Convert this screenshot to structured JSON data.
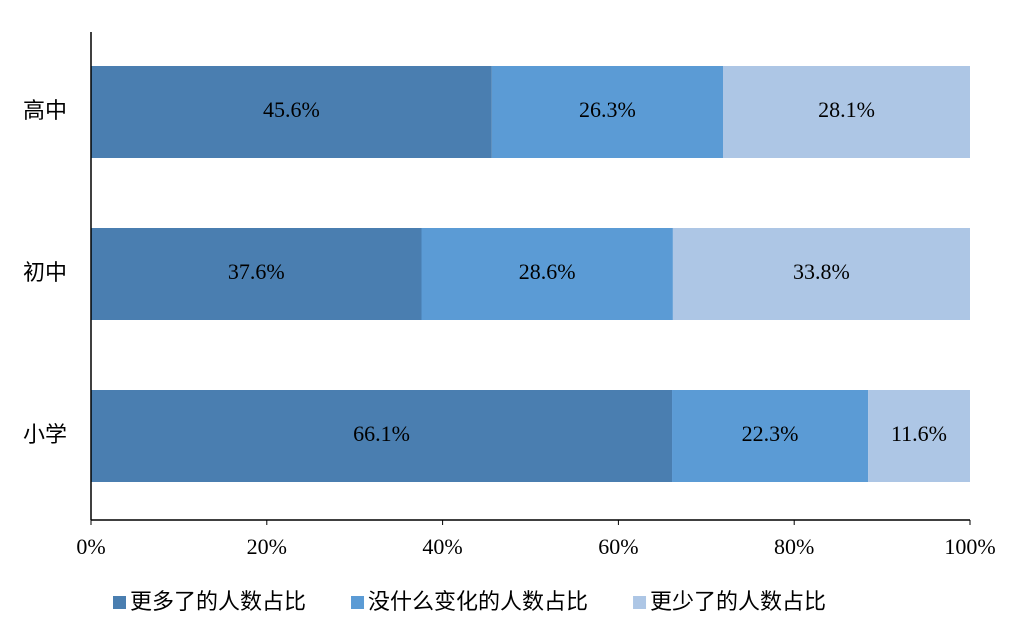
{
  "chart_data": {
    "type": "stacked-bar-horizontal",
    "categories": [
      "高中",
      "初中",
      "小学"
    ],
    "series": [
      {
        "name": "更多了的人数占比",
        "color": "#4a7eb0",
        "values": [
          45.6,
          37.6,
          66.1
        ],
        "value_labels": [
          "45.6%",
          "37.6%",
          "66.1%"
        ]
      },
      {
        "name": "没什么变化的人数占比",
        "color": "#5b9bd5",
        "values": [
          26.3,
          28.6,
          22.3
        ],
        "value_labels": [
          "26.3%",
          "28.6%",
          "22.3%"
        ]
      },
      {
        "name": "更少了的人数占比",
        "color": "#adc6e5",
        "values": [
          28.1,
          33.8,
          11.6
        ],
        "value_labels": [
          "28.1%",
          "33.8%",
          "11.6%"
        ]
      }
    ],
    "xlim": [
      0,
      100
    ],
    "xticks": [
      {
        "value": 0,
        "label": "0%"
      },
      {
        "value": 20,
        "label": "20%"
      },
      {
        "value": 40,
        "label": "40%"
      },
      {
        "value": 60,
        "label": "60%"
      },
      {
        "value": 80,
        "label": "80%"
      },
      {
        "value": 100,
        "label": "100%"
      }
    ],
    "legend": "bottom"
  }
}
